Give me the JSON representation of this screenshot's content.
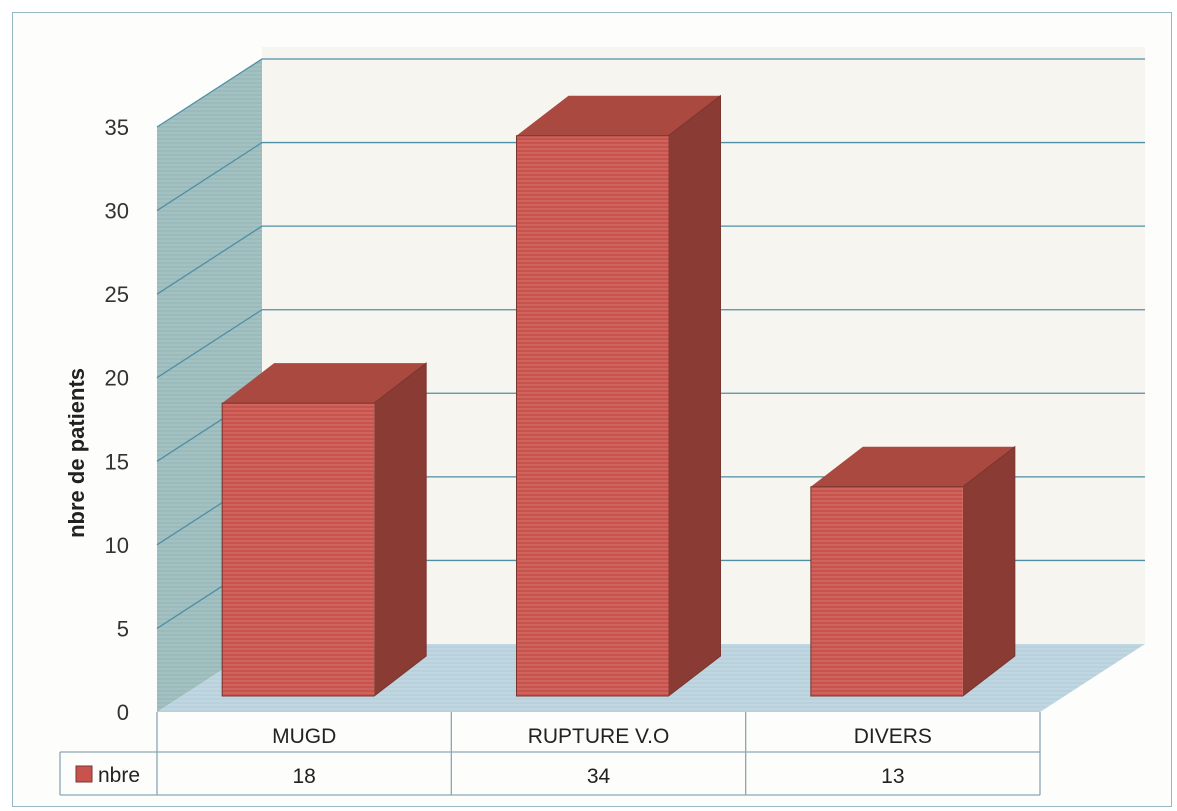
{
  "chart_data": {
    "type": "bar",
    "title": "",
    "xlabel": "",
    "ylabel": "nbre de patients",
    "categories": [
      "MUGD",
      "RUPTURE V.O",
      "DIVERS"
    ],
    "series": [
      {
        "name": "nbre",
        "values": [
          18,
          34,
          13
        ],
        "color": "#c8524c"
      }
    ],
    "ylim": [
      0,
      35
    ],
    "yticks": [
      0,
      5,
      10,
      15,
      20,
      25,
      30,
      35
    ],
    "grid": true,
    "data_table": true,
    "style": "3d-column"
  },
  "colors": {
    "bar_front": "#c8524c",
    "bar_top": "#a9493f",
    "bar_side": "#8a3b34",
    "wall": "#8fb3b4",
    "floor": "#b9d1dc",
    "grid": "#4f8fa6"
  }
}
